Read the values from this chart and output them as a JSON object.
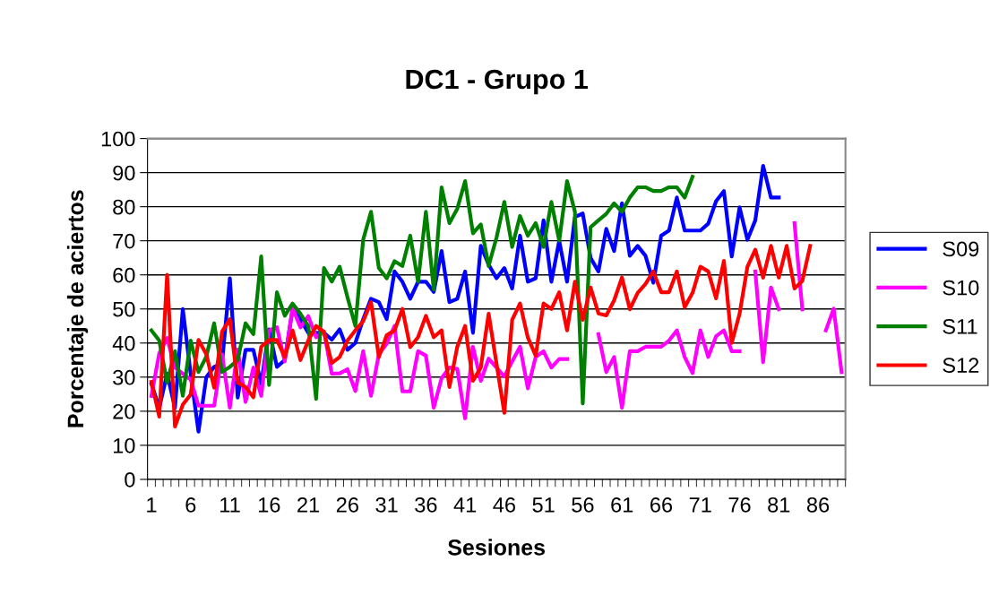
{
  "chart_data": {
    "type": "line",
    "title": "DC1 - Grupo 1",
    "xlabel": "Sesiones",
    "ylabel": "Porcentaje de aciertos",
    "categories": [
      "1",
      null,
      null,
      null,
      null,
      "6",
      null,
      null,
      null,
      null,
      "11",
      null,
      null,
      null,
      null,
      "16",
      null,
      null,
      null,
      null,
      "21",
      null,
      null,
      null,
      null,
      "26",
      null,
      null,
      null,
      null,
      "31",
      null,
      null,
      null,
      null,
      "36",
      null,
      null,
      null,
      null,
      "41",
      null,
      null,
      null,
      null,
      "46",
      null,
      null,
      null,
      null,
      "51",
      null,
      null,
      null,
      null,
      "56",
      null,
      null,
      null,
      null,
      "61",
      null,
      null,
      null,
      null,
      "66",
      null,
      null,
      null,
      null,
      "71",
      null,
      null,
      null,
      null,
      "76",
      null,
      null,
      null,
      null,
      "81",
      null,
      null,
      null,
      null,
      "86",
      null,
      null,
      null
    ],
    "ylim": [
      0,
      100
    ],
    "yticks": [
      0,
      10,
      20,
      30,
      40,
      50,
      60,
      70,
      80,
      90,
      100
    ],
    "grid": "y",
    "legend": "right",
    "marker": "none",
    "line_style": "solid",
    "series": [
      {
        "name": "S09",
        "color": "#0000ff",
        "values": [
          28,
          21,
          31,
          21,
          50,
          31,
          14,
          30,
          33,
          34,
          59,
          24,
          38,
          38,
          28,
          44,
          33,
          35,
          50,
          47,
          43,
          43,
          43,
          41,
          44,
          38,
          40,
          47,
          53,
          52,
          47,
          61,
          58,
          53,
          58,
          58,
          55,
          67,
          52,
          53,
          61,
          43,
          68.5,
          63,
          59,
          62,
          56,
          71.5,
          58,
          59,
          76,
          58,
          70,
          58,
          77,
          78,
          65,
          61,
          73.5,
          67,
          81,
          65.6,
          68.5,
          65.6,
          57.7,
          71.5,
          73,
          82.7,
          73,
          73,
          73,
          75,
          81.6,
          84.6,
          65.4,
          79.8,
          70.3,
          76,
          92,
          82.7,
          82.7,
          null,
          null,
          null,
          null,
          null,
          null,
          null,
          null
        ]
      },
      {
        "name": "S10",
        "color": "#ff00ff",
        "values": [
          24.5,
          37,
          41.5,
          32.8,
          31,
          29.3,
          21.6,
          21.6,
          21.6,
          36.7,
          21,
          38.1,
          22.7,
          32.8,
          24.5,
          43.7,
          44.6,
          34.6,
          50.3,
          44.6,
          47.9,
          41.7,
          43.3,
          31,
          31.1,
          32.3,
          25.9,
          37.6,
          24.5,
          36.7,
          39.8,
          45,
          25.8,
          25.8,
          37.6,
          36.3,
          21,
          29.7,
          32.8,
          32.4,
          17.9,
          38.9,
          28.9,
          35.4,
          32.8,
          30.2,
          34.6,
          38.9,
          26.7,
          35.9,
          37.6,
          32.8,
          35.3,
          35.3,
          null,
          null,
          null,
          42.6,
          31.5,
          35.9,
          21,
          37.6,
          37.6,
          38.9,
          38.9,
          38.9,
          40.7,
          43.7,
          35.9,
          31.2,
          43.7,
          35.9,
          42,
          43.7,
          37.6,
          37.6,
          null,
          61,
          34.4,
          56.3,
          49.9,
          null,
          75.2,
          49.9,
          null,
          null,
          43.7,
          50.1,
          31.5
        ]
      },
      {
        "name": "S11",
        "color": "#008000",
        "values": [
          43.7,
          40.7,
          28.4,
          37.6,
          24.5,
          40.7,
          31.5,
          36,
          45.8,
          31.5,
          33,
          35,
          45.8,
          42.6,
          65.4,
          27.7,
          54.9,
          48,
          51.6,
          48.6,
          45,
          23.6,
          62,
          58,
          62.4,
          53.4,
          45,
          70.3,
          78.5,
          62,
          59,
          64,
          62.6,
          71.5,
          58,
          78.5,
          55.7,
          85.7,
          75.2,
          79.4,
          87.5,
          72.2,
          74.8,
          62.6,
          70.9,
          81.4,
          68.2,
          77.3,
          71.5,
          75.2,
          68.2,
          81.4,
          70,
          87.5,
          78.5,
          22.3,
          74,
          76,
          77.9,
          81,
          78.5,
          82.7,
          85.7,
          85.7,
          84.6,
          84.6,
          85.7,
          85.7,
          82.7,
          88.8,
          null,
          null,
          null,
          null,
          null,
          null,
          null,
          null,
          null,
          null,
          null,
          null,
          null,
          null,
          null,
          null,
          null,
          null,
          null
        ]
      },
      {
        "name": "S12",
        "color": "#ff0000",
        "values": [
          28.6,
          18.4,
          60,
          15.5,
          21.9,
          24.9,
          40.9,
          36.7,
          26.9,
          43.3,
          47,
          28.4,
          27.1,
          24.1,
          38.9,
          40.9,
          40.9,
          35.9,
          43.7,
          35,
          40.7,
          45,
          43.3,
          34.1,
          35.9,
          40.7,
          43.7,
          46.4,
          52,
          35.9,
          42.3,
          43.7,
          50,
          38.8,
          41.7,
          48,
          41.7,
          43.7,
          27.1,
          38.9,
          45,
          28.9,
          32.8,
          48.6,
          34,
          19.5,
          46.8,
          51.6,
          41.6,
          36.3,
          51.6,
          50,
          54.9,
          43.7,
          58,
          46.8,
          56.3,
          48.7,
          48.1,
          52.5,
          59.2,
          49.9,
          54.7,
          57.3,
          61,
          54.9,
          54.9,
          61,
          50.5,
          54.7,
          62.4,
          61,
          53.1,
          64.1,
          40,
          48.6,
          62.4,
          67.4,
          59.2,
          68.5,
          59.2,
          68.5,
          56,
          58.2,
          68.5,
          null,
          null,
          null,
          null
        ]
      }
    ]
  }
}
